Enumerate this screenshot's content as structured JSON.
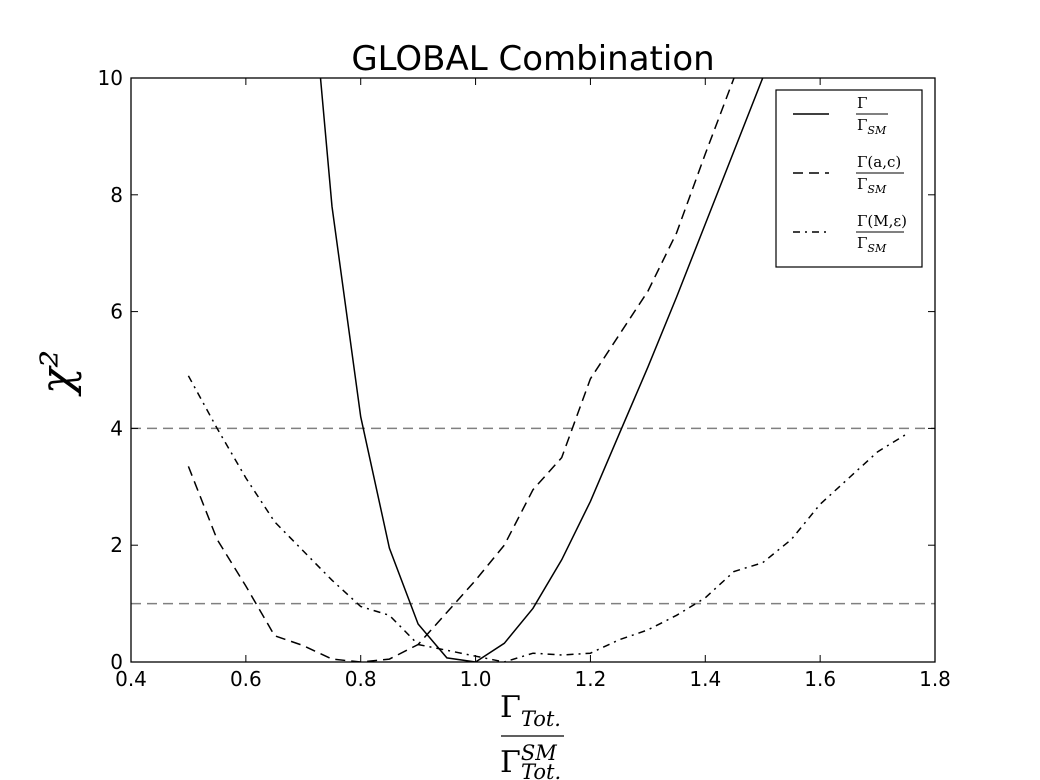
{
  "chart_data": {
    "type": "line",
    "title": "GLOBAL Combination",
    "ylabel": "χ²",
    "xlabel": {
      "numerator": "Γ",
      "numerator_sub": "Tot.",
      "denominator": "Γ",
      "denominator_sup": "SM",
      "denominator_sub": "Tot."
    },
    "xlim": [
      0.4,
      1.8
    ],
    "ylim": [
      0,
      10
    ],
    "x_ticks": [
      0.4,
      0.6,
      0.8,
      1.0,
      1.2,
      1.4,
      1.6,
      1.8
    ],
    "x_tick_labels": [
      "0.4",
      "0.6",
      "0.8",
      "1.0",
      "1.2",
      "1.4",
      "1.6",
      "1.8"
    ],
    "y_ticks": [
      0,
      2,
      4,
      6,
      8,
      10
    ],
    "y_tick_labels": [
      "0",
      "2",
      "4",
      "6",
      "8",
      "10"
    ],
    "reference_lines": [
      1,
      4
    ],
    "grid": false,
    "legend_position": "top-right",
    "series": [
      {
        "name": "Γ / Γ_SM",
        "legend": {
          "num": "Γ",
          "den": "Γ",
          "den_sub": "SM"
        },
        "style": "solid",
        "x": [
          0.73,
          0.75,
          0.8,
          0.85,
          0.9,
          0.95,
          1.0,
          1.05,
          1.1,
          1.15,
          1.2,
          1.25,
          1.3,
          1.35,
          1.4,
          1.45,
          1.5
        ],
        "y": [
          10.0,
          7.8,
          4.2,
          1.95,
          0.65,
          0.07,
          0.0,
          0.32,
          0.92,
          1.75,
          2.75,
          3.9,
          5.05,
          6.25,
          7.5,
          8.75,
          10.0
        ]
      },
      {
        "name": "Γ(a,c) / Γ_SM",
        "legend": {
          "num": "Γ(a,c)",
          "den": "Γ",
          "den_sub": "SM"
        },
        "style": "dashed",
        "x": [
          0.5,
          0.55,
          0.6,
          0.65,
          0.7,
          0.75,
          0.8,
          0.85,
          0.9,
          0.95,
          1.0,
          1.05,
          1.1,
          1.15,
          1.2,
          1.25,
          1.3,
          1.35,
          1.4,
          1.45
        ],
        "y": [
          3.35,
          2.1,
          1.3,
          0.45,
          0.28,
          0.05,
          0.0,
          0.05,
          0.3,
          0.85,
          1.4,
          2.0,
          2.95,
          3.5,
          4.85,
          5.6,
          6.35,
          7.35,
          8.7,
          10.0
        ]
      },
      {
        "name": "Γ(M,ε) / Γ_SM",
        "legend": {
          "num": "Γ(M,ε)",
          "den": "Γ",
          "den_sub": "SM"
        },
        "style": "dashdot",
        "x": [
          0.5,
          0.55,
          0.6,
          0.65,
          0.7,
          0.75,
          0.8,
          0.85,
          0.9,
          0.95,
          1.0,
          1.05,
          1.1,
          1.15,
          1.2,
          1.25,
          1.3,
          1.35,
          1.4,
          1.45,
          1.5,
          1.55,
          1.6,
          1.65,
          1.7,
          1.75
        ],
        "y": [
          4.9,
          4.0,
          3.15,
          2.4,
          1.9,
          1.4,
          0.95,
          0.8,
          0.3,
          0.2,
          0.1,
          0.0,
          0.15,
          0.12,
          0.15,
          0.38,
          0.55,
          0.8,
          1.1,
          1.55,
          1.7,
          2.1,
          2.7,
          3.15,
          3.6,
          3.9
        ]
      }
    ]
  }
}
